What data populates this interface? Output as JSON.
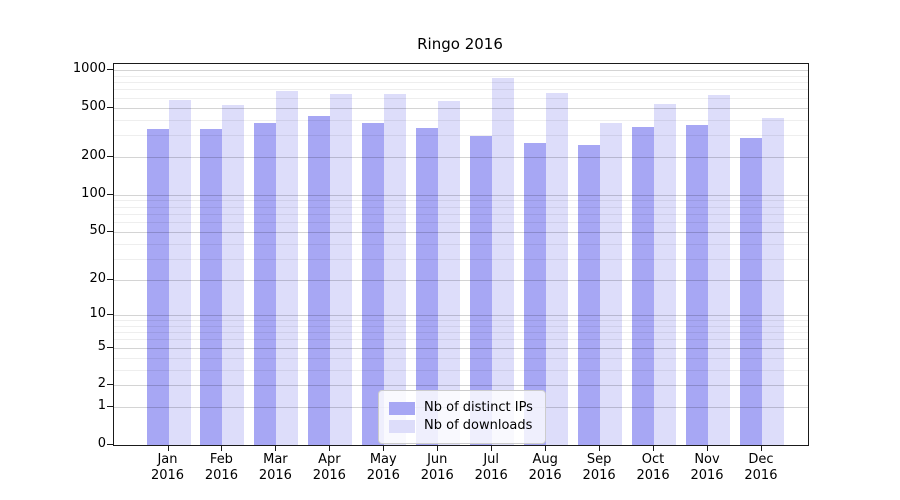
{
  "chart_data": {
    "type": "bar",
    "title": "Ringo 2016",
    "categories": [
      "Jan",
      "Feb",
      "Mar",
      "Apr",
      "May",
      "Jun",
      "Jul",
      "Aug",
      "Sep",
      "Oct",
      "Nov",
      "Dec"
    ],
    "year_label": "2016",
    "series": [
      {
        "name": "Nb of distinct IPs",
        "color": "#a7a7f4",
        "values": [
          340,
          340,
          375,
          430,
          380,
          345,
          295,
          260,
          250,
          350,
          360,
          285
        ]
      },
      {
        "name": "Nb of downloads",
        "color": "#ddddfa",
        "values": [
          575,
          530,
          680,
          640,
          650,
          565,
          860,
          660,
          375,
          540,
          630,
          410
        ]
      }
    ],
    "yticks": [
      0,
      1,
      2,
      5,
      10,
      20,
      50,
      100,
      200,
      500,
      1000
    ],
    "minor_gridlines": [
      3,
      4,
      6,
      7,
      8,
      9,
      30,
      40,
      60,
      70,
      80,
      90,
      300,
      400,
      600,
      700,
      800,
      900
    ],
    "y_scale": "log1p",
    "ylim": [
      0,
      1120
    ],
    "xlabel": "",
    "ylabel": "",
    "grid": true,
    "legend_position": "lower-center-inside"
  }
}
